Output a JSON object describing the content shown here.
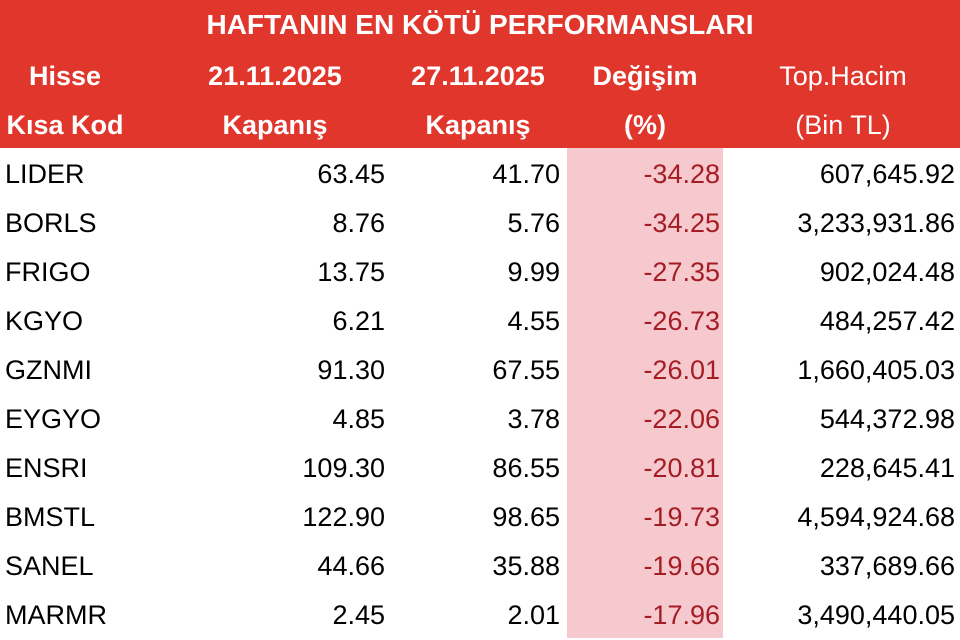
{
  "header": {
    "title": "HAFTANIN EN KÖTÜ PERFORMANSLARI",
    "columns": [
      [
        "Hisse",
        "Kısa Kod"
      ],
      [
        "21.11.2025",
        "Kapanış"
      ],
      [
        "27.11.2025",
        "Kapanış"
      ],
      [
        "Değişim",
        "(%)"
      ],
      [
        "Top.Hacim",
        "(Bin TL)"
      ]
    ]
  },
  "table": {
    "rows": [
      [
        "LIDER",
        "63.45",
        "41.70",
        "-34.28",
        "607,645.92"
      ],
      [
        "BORLS",
        "8.76",
        "5.76",
        "-34.25",
        "3,233,931.86"
      ],
      [
        "FRIGO",
        "13.75",
        "9.99",
        "-27.35",
        "902,024.48"
      ],
      [
        "KGYO",
        "6.21",
        "4.55",
        "-26.73",
        "484,257.42"
      ],
      [
        "GZNMI",
        "91.30",
        "67.55",
        "-26.01",
        "1,660,405.03"
      ],
      [
        "EYGYO",
        "4.85",
        "3.78",
        "-22.06",
        "544,372.98"
      ],
      [
        "ENSRI",
        "109.30",
        "86.55",
        "-20.81",
        "228,645.41"
      ],
      [
        "BMSTL",
        "122.90",
        "98.65",
        "-19.73",
        "4,594,924.68"
      ],
      [
        "SANEL",
        "44.66",
        "35.88",
        "-19.66",
        "337,689.66"
      ],
      [
        "MARMR",
        "2.45",
        "2.01",
        "-17.96",
        "3,490,440.05"
      ]
    ]
  }
}
